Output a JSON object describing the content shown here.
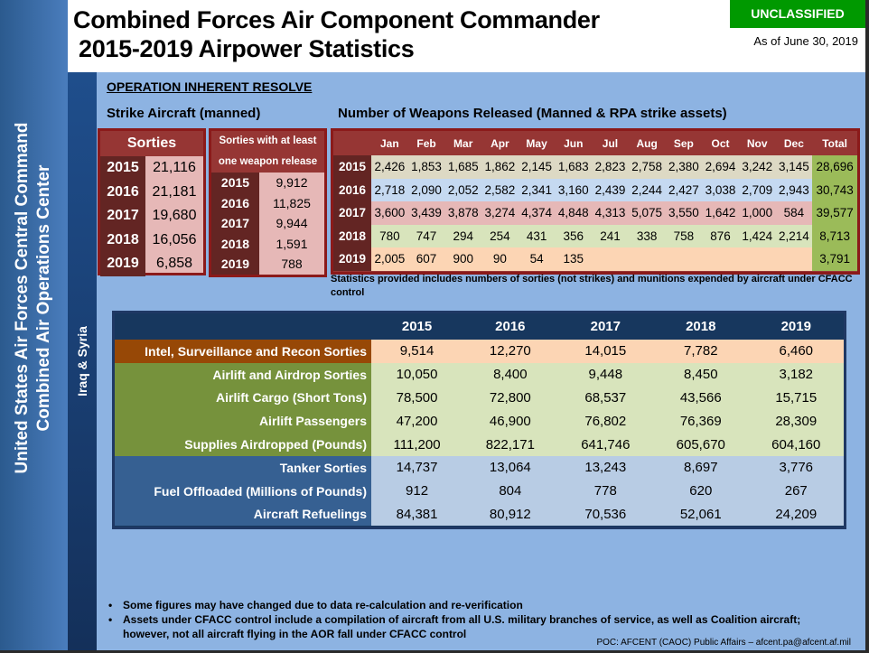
{
  "header": {
    "title_line1": "Combined Forces Air Component Commander",
    "title_line2": "2015-2019 Airpower Statistics",
    "classification": "UNCLASSIFIED",
    "as_of": "As of June 30, 2019",
    "classification_color": "#009900"
  },
  "side": {
    "org_line1": "United States Air Forces Central Command",
    "org_line2": "Combined Air Operations Center",
    "region": "Iraq & Syria"
  },
  "operation": "OPERATION INHERENT RESOLVE",
  "strike": {
    "title": "Strike Aircraft (manned)",
    "sorties_header": "Sorties",
    "sorties": [
      {
        "year": "2015",
        "value": "21,116"
      },
      {
        "year": "2016",
        "value": "21,181"
      },
      {
        "year": "2017",
        "value": "19,680"
      },
      {
        "year": "2018",
        "value": "16,056"
      },
      {
        "year": "2019",
        "value": "6,858"
      }
    ],
    "weapon_header_line1": "Sorties with at least",
    "weapon_header_line2": "one weapon release",
    "weapon_sorties": [
      {
        "year": "2015",
        "value": "9,912"
      },
      {
        "year": "2016",
        "value": "11,825"
      },
      {
        "year": "2017",
        "value": "9,944"
      },
      {
        "year": "2018",
        "value": "1,591"
      },
      {
        "year": "2019",
        "value": "788"
      }
    ]
  },
  "weapons": {
    "title": "Number of Weapons Released (Manned & RPA strike assets)",
    "columns": [
      "Jan",
      "Feb",
      "Mar",
      "Apr",
      "May",
      "Jun",
      "Jul",
      "Aug",
      "Sep",
      "Oct",
      "Nov",
      "Dec",
      "Total"
    ],
    "rows": [
      {
        "year": "2015",
        "color": "#ddd9c4",
        "values": [
          "2,426",
          "1,853",
          "1,685",
          "1,862",
          "2,145",
          "1,683",
          "2,823",
          "2,758",
          "2,380",
          "2,694",
          "3,242",
          "3,145"
        ],
        "total": "28,696"
      },
      {
        "year": "2016",
        "color": "#c5d9f1",
        "values": [
          "2,718",
          "2,090",
          "2,052",
          "2,582",
          "2,341",
          "3,160",
          "2,439",
          "2,244",
          "2,427",
          "3,038",
          "2,709",
          "2,943"
        ],
        "total": "30,743"
      },
      {
        "year": "2017",
        "color": "#e6b8b7",
        "values": [
          "3,600",
          "3,439",
          "3,878",
          "3,274",
          "4,374",
          "4,848",
          "4,313",
          "5,075",
          "3,550",
          "1,642",
          "1,000",
          "584"
        ],
        "total": "39,577"
      },
      {
        "year": "2018",
        "color": "#d8e4bc",
        "values": [
          "780",
          "747",
          "294",
          "254",
          "431",
          "356",
          "241",
          "338",
          "758",
          "876",
          "1,424",
          "2,214"
        ],
        "total": "8,713"
      },
      {
        "year": "2019",
        "color": "#fcd5b4",
        "values": [
          "2,005",
          "607",
          "900",
          "90",
          "54",
          "135",
          "",
          "",
          "",
          "",
          "",
          ""
        ],
        "total": "3,791"
      }
    ],
    "note": "Statistics provided includes numbers of sorties (not strikes) and munitions expended by aircraft under CFACC control"
  },
  "stats": {
    "years": [
      "2015",
      "2016",
      "2017",
      "2018",
      "2019"
    ],
    "rows": [
      {
        "group": "isr",
        "label": "Intel, Surveillance and Recon Sorties",
        "values": [
          "9,514",
          "12,270",
          "14,015",
          "7,782",
          "6,460"
        ]
      },
      {
        "group": "air",
        "label": "Airlift and Airdrop Sorties",
        "values": [
          "10,050",
          "8,400",
          "9,448",
          "8,450",
          "3,182"
        ]
      },
      {
        "group": "air",
        "label": "Airlift Cargo (Short Tons)",
        "values": [
          "78,500",
          "72,800",
          "68,537",
          "43,566",
          "15,715"
        ]
      },
      {
        "group": "air",
        "label": "Airlift Passengers",
        "values": [
          "47,200",
          "46,900",
          "76,802",
          "76,369",
          "28,309"
        ]
      },
      {
        "group": "air",
        "label": "Supplies Airdropped (Pounds)",
        "values": [
          "111,200",
          "822,171",
          "641,746",
          "605,670",
          "604,160"
        ]
      },
      {
        "group": "tank",
        "label": "Tanker Sorties",
        "values": [
          "14,737",
          "13,064",
          "13,243",
          "8,697",
          "3,776"
        ]
      },
      {
        "group": "tank",
        "label": "Fuel Offloaded (Millions of Pounds)",
        "values": [
          "912",
          "804",
          "778",
          "620",
          "267"
        ]
      },
      {
        "group": "tank",
        "label": "Aircraft Refuelings",
        "values": [
          "84,381",
          "80,912",
          "70,536",
          "52,061",
          "24,209"
        ]
      }
    ]
  },
  "footer": {
    "bullets": [
      "Some figures may have changed due to data re-calculation and re-verification",
      "Assets under CFACC control include a compilation of aircraft from all U.S.  military branches of service, as well as Coalition aircraft; however, not all aircraft flying in the AOR fall under CFACC control"
    ],
    "poc": "POC:  AFCENT (CAOC) Public Affairs – afcent.pa@afcent.af.mil"
  }
}
